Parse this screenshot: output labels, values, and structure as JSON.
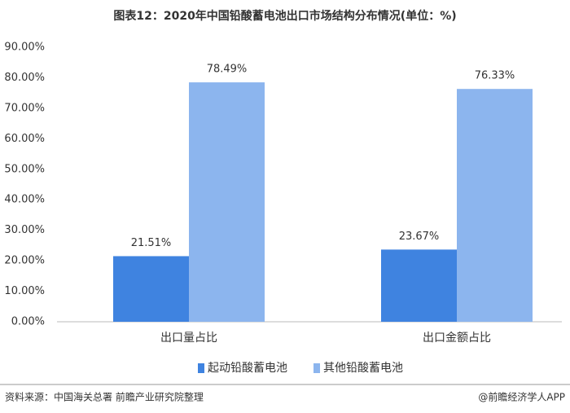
{
  "chart_data": {
    "type": "bar",
    "title": "图表12：2020年中国铅酸蓄电池出口市场结构分布情况(单位：%)",
    "categories": [
      "出口量占比",
      "出口金额占比"
    ],
    "series": [
      {
        "name": "起动铅酸蓄电池",
        "color": "#3f83e0",
        "values": [
          21.51,
          23.67
        ],
        "value_labels": [
          "21.51%",
          "23.67%"
        ]
      },
      {
        "name": "其他铅酸蓄电池",
        "color": "#8cb5ee",
        "values": [
          78.49,
          76.33
        ],
        "value_labels": [
          "78.49%",
          "76.33%"
        ]
      }
    ],
    "ylim": [
      0,
      90
    ],
    "yticks": [
      {
        "value": 0,
        "label": "0.00%"
      },
      {
        "value": 10,
        "label": "10.00%"
      },
      {
        "value": 20,
        "label": "20.00%"
      },
      {
        "value": 30,
        "label": "30.00%"
      },
      {
        "value": 40,
        "label": "40.00%"
      },
      {
        "value": 50,
        "label": "50.00%"
      },
      {
        "value": 60,
        "label": "60.00%"
      },
      {
        "value": 70,
        "label": "70.00%"
      },
      {
        "value": 80,
        "label": "80.00%"
      },
      {
        "value": 90,
        "label": "90.00%"
      }
    ],
    "grid": false,
    "source": "资料来源：中国海关总署 前瞻产业研究院整理",
    "footer": "@前瞻经济学人APP"
  }
}
